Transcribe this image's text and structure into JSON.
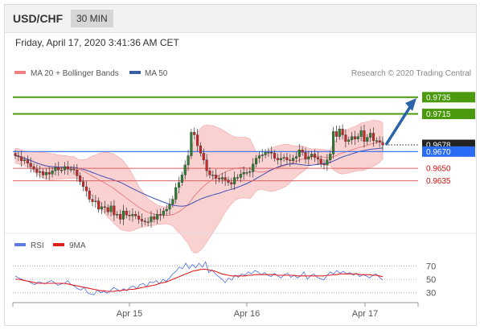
{
  "header": {
    "pair": "USD/CHF",
    "timeframe": "30 MIN",
    "datetime": "Friday, April 17, 2020 3:41:36 AM CET"
  },
  "colors": {
    "candle_up": "#2e7d32",
    "candle_down": "#c62828",
    "bollinger_fill": "#f7c6c6",
    "ma20": "#e57373",
    "ma50": "#3f51b5",
    "resistance": "#4b9a0e",
    "current": "#2a6df4",
    "support": "#e06060",
    "arrow": "#2b63a8",
    "rsi": "#5b7be0",
    "rsi_ma": "#e02020"
  },
  "chart_data": [
    {
      "type": "candlestick",
      "title": "USD/CHF 30 MIN",
      "legend": [
        {
          "name": "MA 20 + Bollinger Bands",
          "color": "#f08080"
        },
        {
          "name": "MA 50",
          "color": "#3a5fa0"
        }
      ],
      "legend_position": "top-left",
      "credit": "Research © 2020 Trading Central",
      "x_ticks": [
        "Apr 15",
        "Apr 16",
        "Apr 17"
      ],
      "ylim": [
        0.9575,
        0.9755
      ],
      "close": [
        0.9665,
        0.9664,
        0.9659,
        0.966,
        0.9656,
        0.9652,
        0.9649,
        0.9645,
        0.9646,
        0.9642,
        0.9645,
        0.9643,
        0.9647,
        0.9651,
        0.9648,
        0.9648,
        0.9652,
        0.9649,
        0.9649,
        0.9648,
        0.9641,
        0.9634,
        0.9628,
        0.9623,
        0.9613,
        0.961,
        0.9611,
        0.9601,
        0.9604,
        0.9603,
        0.9598,
        0.9605,
        0.9594,
        0.9595,
        0.9589,
        0.9599,
        0.9594,
        0.9593,
        0.9595,
        0.9593,
        0.9589,
        0.9587,
        0.9586,
        0.9586,
        0.9592,
        0.9589,
        0.9595,
        0.9594,
        0.9599,
        0.9601,
        0.9607,
        0.9613,
        0.9627,
        0.9633,
        0.9642,
        0.9654,
        0.9665,
        0.9693,
        0.969,
        0.9677,
        0.9668,
        0.966,
        0.9647,
        0.9642,
        0.9642,
        0.9638,
        0.9637,
        0.9639,
        0.9636,
        0.9633,
        0.9631,
        0.9639,
        0.9639,
        0.9643,
        0.9645,
        0.9645,
        0.9646,
        0.9655,
        0.9662,
        0.9665,
        0.9666,
        0.9669,
        0.9669,
        0.9668,
        0.9662,
        0.966,
        0.9662,
        0.9663,
        0.966,
        0.9659,
        0.9662,
        0.9664,
        0.9672,
        0.9669,
        0.9661,
        0.9664,
        0.9667,
        0.9663,
        0.9661,
        0.9655,
        0.9654,
        0.966,
        0.9667,
        0.9694,
        0.9688,
        0.9697,
        0.969,
        0.9682,
        0.9684,
        0.9688,
        0.9685,
        0.9688,
        0.9695,
        0.9682,
        0.9687,
        0.9692,
        0.9683,
        0.9683,
        0.9681,
        0.9678
      ],
      "levels": [
        {
          "value": 0.9735,
          "label": "0.9735",
          "kind": "resistance"
        },
        {
          "value": 0.9715,
          "label": "0.9715",
          "kind": "resistance"
        },
        {
          "value": 0.9678,
          "label": "0.9678",
          "kind": "last"
        },
        {
          "value": 0.967,
          "label": "0.9670",
          "kind": "pivot"
        },
        {
          "value": 0.965,
          "label": "0.9650",
          "kind": "support"
        },
        {
          "value": 0.9635,
          "label": "0.9635",
          "kind": "support"
        }
      ],
      "forecast": {
        "from": 0.9678,
        "to": 0.973,
        "direction": "up"
      }
    },
    {
      "type": "line",
      "title": "RSI",
      "legend": [
        {
          "name": "RSI",
          "color": "#5b7be0"
        },
        {
          "name": "9MA",
          "color": "#e02020"
        }
      ],
      "y_ticks": [
        70,
        50,
        30
      ],
      "ylim": [
        20,
        80
      ],
      "series": [
        {
          "name": "RSI",
          "values": [
            55,
            52,
            50,
            48,
            47,
            44,
            42,
            46,
            45,
            43,
            46,
            48,
            45,
            41,
            43,
            44,
            48,
            42,
            40,
            36,
            34,
            38,
            30,
            28,
            27,
            34,
            30,
            32,
            29,
            33,
            38,
            35,
            32,
            36,
            33,
            38,
            40,
            36,
            42,
            44,
            39,
            46,
            45,
            48,
            43,
            50,
            47,
            52,
            58,
            62,
            68,
            66,
            74,
            66,
            72,
            67,
            74,
            68,
            76,
            60,
            64,
            58,
            54,
            50,
            45,
            52,
            49,
            56,
            53,
            58,
            56,
            61,
            58,
            63,
            61,
            57,
            60,
            56,
            54,
            59,
            55,
            52,
            57,
            59,
            53,
            56,
            52,
            55,
            61,
            50,
            55,
            58,
            53,
            51,
            49,
            55,
            61,
            58,
            63,
            59,
            62,
            58,
            60,
            56,
            59,
            54,
            57,
            55,
            52,
            56,
            58,
            53,
            49
          ]
        },
        {
          "name": "9MA",
          "values": [
            50,
            50,
            49,
            48,
            47,
            46,
            45,
            44,
            44,
            44,
            44,
            44,
            44,
            44,
            44,
            44,
            43,
            42,
            41,
            40,
            39,
            38,
            37,
            36,
            35,
            34,
            33,
            33,
            32,
            32,
            32,
            33,
            33,
            34,
            34,
            35,
            35,
            36,
            37,
            38,
            39,
            40,
            41,
            42,
            44,
            45,
            46,
            48,
            50,
            52,
            54,
            56,
            58,
            60,
            62,
            63,
            64,
            65,
            65,
            64,
            63,
            62,
            60,
            58,
            57,
            56,
            55,
            55,
            55,
            55,
            55,
            56,
            56,
            57,
            57,
            57,
            57,
            57,
            57,
            57,
            56,
            56,
            56,
            56,
            56,
            56,
            55,
            55,
            55,
            55,
            55,
            55,
            55,
            55,
            55,
            56,
            56,
            57,
            57,
            58,
            58,
            58,
            58,
            58,
            58,
            57,
            57,
            57,
            57,
            56,
            56,
            55,
            54
          ]
        }
      ]
    }
  ]
}
